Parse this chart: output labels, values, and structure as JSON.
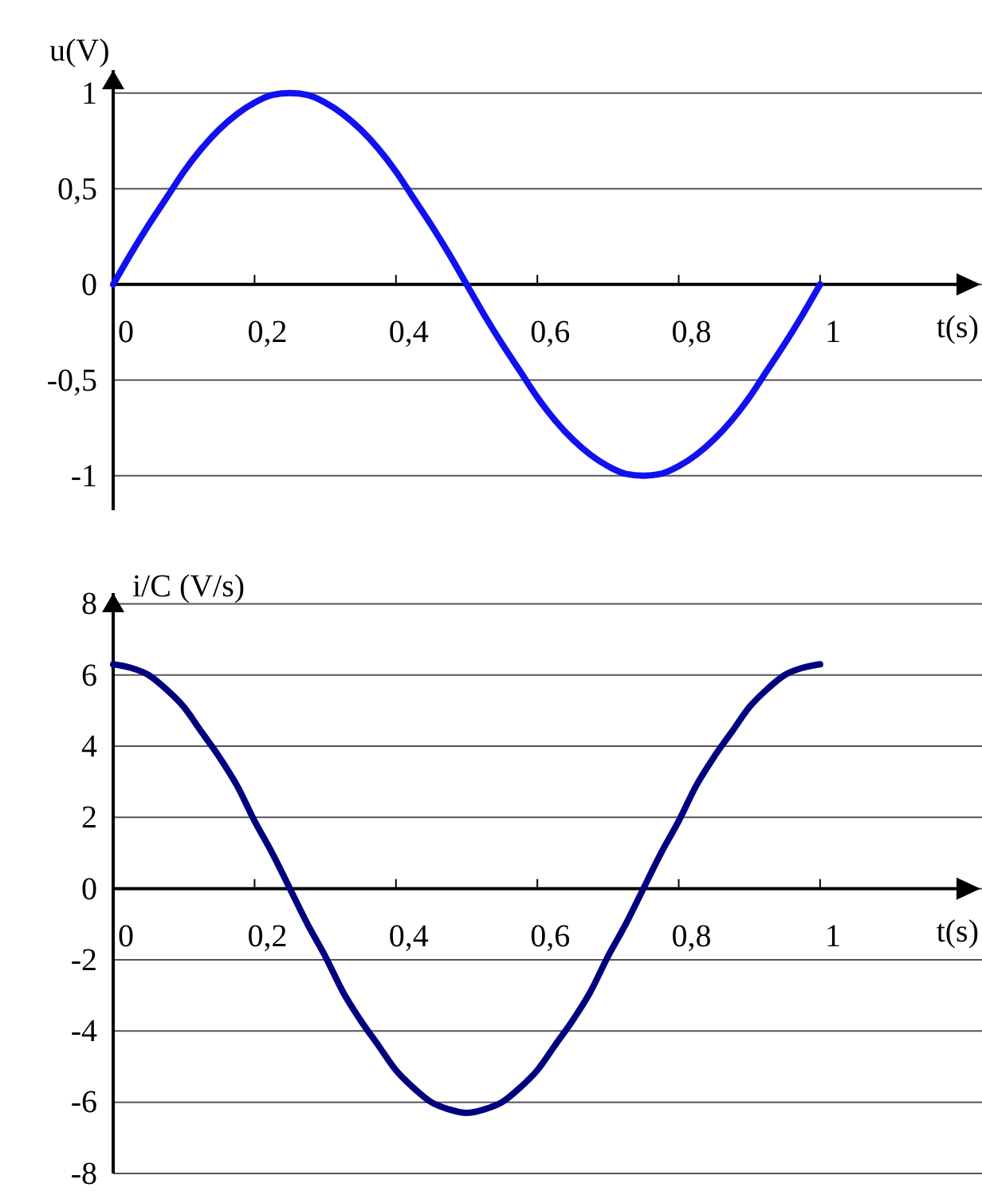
{
  "chart_data": [
    {
      "type": "line",
      "ylabel": "u(V)",
      "xlabel": "t(s)",
      "grid": true,
      "x": [
        0,
        0.025,
        0.05,
        0.075,
        0.1,
        0.125,
        0.15,
        0.175,
        0.2,
        0.225,
        0.25,
        0.275,
        0.3,
        0.325,
        0.35,
        0.375,
        0.4,
        0.425,
        0.45,
        0.475,
        0.5,
        0.525,
        0.55,
        0.575,
        0.6,
        0.625,
        0.65,
        0.675,
        0.7,
        0.725,
        0.75,
        0.775,
        0.8,
        0.825,
        0.85,
        0.875,
        0.9,
        0.925,
        0.95,
        0.975,
        1
      ],
      "series": [
        {
          "color": "#1010f0",
          "values": [
            0,
            0.16,
            0.31,
            0.45,
            0.59,
            0.71,
            0.81,
            0.89,
            0.95,
            0.99,
            1,
            0.99,
            0.95,
            0.89,
            0.81,
            0.71,
            0.59,
            0.45,
            0.31,
            0.16,
            0,
            -0.16,
            -0.31,
            -0.45,
            -0.59,
            -0.71,
            -0.81,
            -0.89,
            -0.95,
            -0.99,
            -1,
            -0.99,
            -0.95,
            -0.89,
            -0.81,
            -0.71,
            -0.59,
            -0.45,
            -0.31,
            -0.16,
            0
          ]
        }
      ],
      "xlim": [
        0,
        1.22
      ],
      "xticks": [
        {
          "value": 0,
          "label": "0"
        },
        {
          "value": 0.2,
          "label": "0,2"
        },
        {
          "value": 0.4,
          "label": "0,4"
        },
        {
          "value": 0.6,
          "label": "0,6"
        },
        {
          "value": 0.8,
          "label": "0,8"
        },
        {
          "value": 1,
          "label": "1"
        }
      ],
      "ylim": [
        -1.18,
        1.12
      ],
      "yticks": [
        {
          "value": -1,
          "label": "-1"
        },
        {
          "value": -0.5,
          "label": "-0,5"
        },
        {
          "value": 0,
          "label": "0"
        },
        {
          "value": 0.5,
          "label": "0,5"
        },
        {
          "value": 1,
          "label": "1"
        }
      ]
    },
    {
      "type": "line",
      "ylabel": "i/C (V/s)",
      "xlabel": "t(s)",
      "grid": true,
      "x": [
        0,
        0.025,
        0.05,
        0.075,
        0.1,
        0.125,
        0.15,
        0.175,
        0.2,
        0.225,
        0.25,
        0.275,
        0.3,
        0.325,
        0.35,
        0.375,
        0.4,
        0.425,
        0.45,
        0.475,
        0.5,
        0.525,
        0.55,
        0.575,
        0.6,
        0.625,
        0.65,
        0.675,
        0.7,
        0.725,
        0.75,
        0.775,
        0.8,
        0.825,
        0.85,
        0.875,
        0.9,
        0.925,
        0.95,
        0.975,
        1
      ],
      "series": [
        {
          "color": "#00007f",
          "values": [
            6.3,
            6.2,
            6.0,
            5.6,
            5.1,
            4.4,
            3.7,
            2.9,
            1.9,
            1.0,
            0,
            -1.0,
            -1.9,
            -2.9,
            -3.7,
            -4.4,
            -5.1,
            -5.6,
            -6.0,
            -6.2,
            -6.3,
            -6.2,
            -6.0,
            -5.6,
            -5.1,
            -4.4,
            -3.7,
            -2.9,
            -1.9,
            -1.0,
            0,
            1.0,
            1.9,
            2.9,
            3.7,
            4.4,
            5.1,
            5.6,
            6.0,
            6.2,
            6.3
          ]
        }
      ],
      "xlim": [
        0,
        1.22
      ],
      "xticks": [
        {
          "value": 0,
          "label": "0"
        },
        {
          "value": 0.2,
          "label": "0,2"
        },
        {
          "value": 0.4,
          "label": "0,4"
        },
        {
          "value": 0.6,
          "label": "0,6"
        },
        {
          "value": 0.8,
          "label": "0,8"
        },
        {
          "value": 1,
          "label": "1"
        }
      ],
      "ylim": [
        -8,
        8.3
      ],
      "yticks": [
        -8,
        -6,
        -4,
        -2,
        0,
        2,
        4,
        6,
        8
      ]
    }
  ]
}
